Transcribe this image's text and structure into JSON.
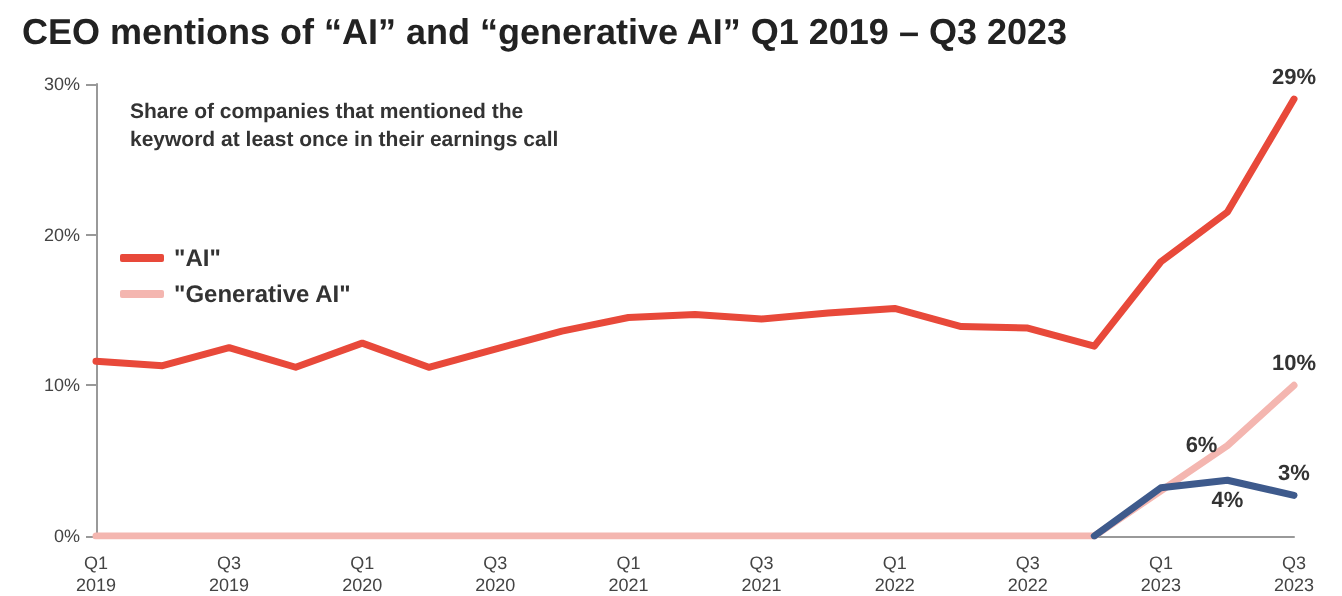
{
  "chart_data": {
    "type": "line",
    "title": "CEO mentions of “AI” and “generative AI” Q1 2019 – Q3 2023",
    "subtitle": "Share of companies that mentioned the\nkeyword at least once in their earnings call",
    "categories": [
      "Q1\n2019",
      null,
      "Q3\n2019",
      null,
      "Q1\n2020",
      null,
      "Q3\n2020",
      null,
      "Q1\n2021",
      null,
      "Q3\n2021",
      null,
      "Q1\n2022",
      null,
      "Q3\n2022",
      null,
      "Q1\n2023",
      null,
      "Q3\n2023"
    ],
    "series": [
      {
        "name": "\"AI\"",
        "color": "#e8493a",
        "values": [
          11.6,
          11.3,
          12.5,
          11.2,
          12.8,
          11.2,
          12.4,
          13.6,
          14.5,
          14.7,
          14.4,
          14.8,
          15.1,
          13.9,
          13.8,
          12.6,
          18.2,
          21.5,
          29
        ],
        "value_labels": [
          null,
          null,
          null,
          null,
          null,
          null,
          null,
          null,
          null,
          null,
          null,
          null,
          null,
          null,
          null,
          null,
          null,
          null,
          "29%"
        ]
      },
      {
        "name": "\"Generative AI\"",
        "color": "#f4b6b0",
        "values": [
          0,
          0,
          0,
          0,
          0,
          0,
          0,
          0,
          0,
          0,
          0,
          0,
          0,
          0,
          0,
          0,
          3,
          6,
          10
        ],
        "value_labels": [
          null,
          null,
          null,
          null,
          null,
          null,
          null,
          null,
          null,
          null,
          null,
          null,
          null,
          null,
          null,
          null,
          null,
          "6%",
          "10%"
        ]
      },
      {
        "color": "#3e5a8c",
        "values": [
          null,
          null,
          null,
          null,
          null,
          null,
          null,
          null,
          null,
          null,
          null,
          null,
          null,
          null,
          null,
          0,
          3.2,
          3.7,
          2.7
        ],
        "value_labels": [
          null,
          null,
          null,
          null,
          null,
          null,
          null,
          null,
          null,
          null,
          null,
          null,
          null,
          null,
          null,
          null,
          null,
          "4%",
          "3%"
        ]
      }
    ],
    "ylim": [
      0,
      30
    ],
    "yticks": [
      {
        "value": 0,
        "label": "0%"
      },
      {
        "value": 10,
        "label": "10%"
      },
      {
        "value": 20,
        "label": "20%"
      },
      {
        "value": 30,
        "label": "30%"
      }
    ],
    "grid": false,
    "legend": "top left",
    "marker": "none",
    "line_style": "solid"
  }
}
